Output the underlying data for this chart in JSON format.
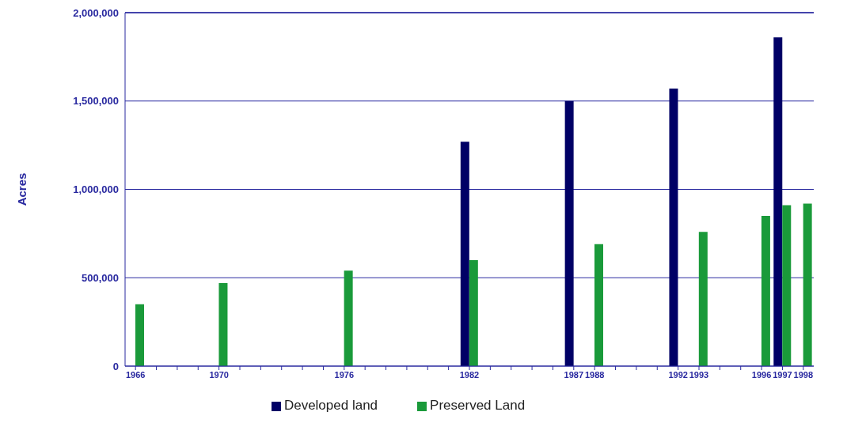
{
  "chart_data": {
    "type": "bar",
    "ylabel": "Acres",
    "categories": [
      "1966",
      null,
      null,
      null,
      "1970",
      null,
      null,
      null,
      null,
      null,
      "1976",
      null,
      null,
      null,
      null,
      null,
      "1982",
      null,
      null,
      null,
      null,
      "1987",
      "1988",
      null,
      null,
      null,
      "1992",
      "1993",
      null,
      null,
      "1996",
      "1997",
      "1998"
    ],
    "series": [
      {
        "name": "Developed land",
        "color": "#000066",
        "values": [
          null,
          null,
          null,
          null,
          null,
          null,
          null,
          null,
          null,
          null,
          null,
          null,
          null,
          null,
          null,
          null,
          1270000,
          null,
          null,
          null,
          null,
          1500000,
          null,
          null,
          null,
          null,
          1570000,
          null,
          null,
          null,
          null,
          1860000,
          null
        ]
      },
      {
        "name": "Preserved Land",
        "color": "#1a9a3a",
        "values": [
          350000,
          null,
          null,
          null,
          470000,
          null,
          null,
          null,
          null,
          null,
          540000,
          null,
          null,
          null,
          null,
          null,
          600000,
          null,
          null,
          null,
          null,
          null,
          690000,
          null,
          null,
          null,
          null,
          760000,
          null,
          null,
          850000,
          910000,
          920000
        ]
      }
    ],
    "ylim": [
      0,
      2000000
    ],
    "yticks": [
      0,
      {
        "value": 500000,
        "label": "500,000"
      },
      {
        "value": 1000000,
        "label": "1,000,000"
      },
      {
        "value": 1500000,
        "label": "1,500,000"
      },
      {
        "value": 2000000,
        "label": "2,000,000"
      }
    ],
    "grid": "y",
    "legend": "bottom"
  }
}
